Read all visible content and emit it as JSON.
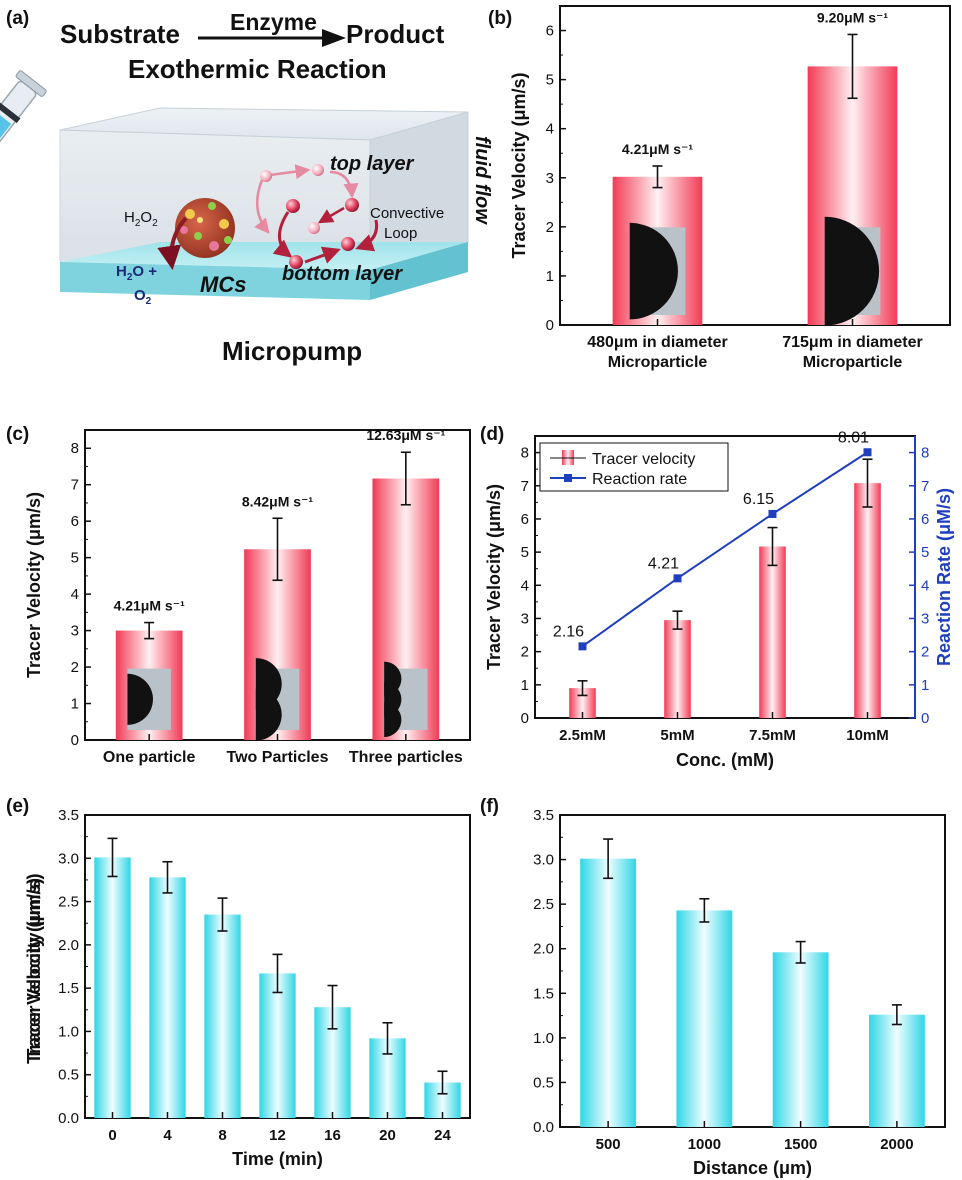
{
  "panel_a": {
    "letter": "(a)",
    "substrate": "Substrate",
    "enzyme": "Enzyme",
    "product": "Product",
    "reaction": "Exothermic Reaction",
    "top_layer": "top layer",
    "bottom_layer": "bottom layer",
    "fluid_flow": "fluid flow",
    "convective": "Convective",
    "loop": "Loop",
    "h2o2_main": "H",
    "h2o2_sub1": "2",
    "h2o2_o": "O",
    "h2o2_sub2": "2",
    "h2o": "H",
    "h2o_sub": "2",
    "h2o_rest": "O +",
    "o2": "O",
    "o2_sub": "2",
    "mcs": "MCs",
    "title": "Micropump"
  },
  "colors": {
    "red_bar_edge": "#f23a55",
    "cyan_bar_edge": "#2fd6e6",
    "rate_line": "#1f3fbf"
  },
  "chart_data": [
    {
      "id": "b",
      "letter": "(b)",
      "type": "bar",
      "categories": [
        [
          "480μm in diameter",
          "Microparticle"
        ],
        [
          "715μm in diameter",
          "Microparticle"
        ]
      ],
      "values": [
        3.02,
        5.27
      ],
      "errors": [
        0.22,
        0.65
      ],
      "annotations": [
        "4.21μM s⁻¹",
        "9.20μM s⁻¹"
      ],
      "ylabel": "Tracer Velocity  (μm/s)",
      "xlabel": "",
      "ylim": [
        0,
        6.5
      ],
      "yticks": [
        "0",
        "1",
        "2",
        "3",
        "4",
        "5",
        "6"
      ],
      "color": "red",
      "insets": true
    },
    {
      "id": "c",
      "letter": "(c)",
      "type": "bar",
      "categories": [
        [
          "One particle"
        ],
        [
          "Two Particles"
        ],
        [
          "Three particles"
        ]
      ],
      "values": [
        3.0,
        5.23,
        7.17
      ],
      "errors": [
        0.22,
        0.85,
        0.72
      ],
      "annotations": [
        "4.21μM s⁻¹",
        "8.42μM s⁻¹",
        "12.63μM s⁻¹"
      ],
      "ylabel": "Tracer Velocity  (μm/s)",
      "xlabel": "",
      "ylim": [
        0,
        8.5
      ],
      "yticks": [
        "0",
        "1",
        "2",
        "3",
        "4",
        "5",
        "6",
        "7",
        "8"
      ],
      "color": "red",
      "insets": true
    },
    {
      "id": "d",
      "letter": "(d)",
      "type": "bar",
      "categories": [
        [
          "2.5mM"
        ],
        [
          "5mM"
        ],
        [
          "7.5mM"
        ],
        [
          "10mM"
        ]
      ],
      "values": [
        0.9,
        2.95,
        5.17,
        7.08
      ],
      "errors": [
        0.22,
        0.27,
        0.57,
        0.72
      ],
      "series": [
        {
          "name": "Tracer velocity",
          "values": [
            0.9,
            2.95,
            5.17,
            7.08
          ]
        },
        {
          "name": "Reaction rate",
          "values": [
            2.16,
            4.21,
            6.15,
            8.01
          ]
        }
      ],
      "line_labels": [
        "2.16",
        "4.21",
        "6.15",
        "8.01"
      ],
      "ylabel": "Tracer Velocity  (μm/s)",
      "y2label": "Reaction Rate (μM/s)",
      "xlabel": "Conc. (mM)",
      "ylim": [
        0,
        8.5
      ],
      "yticks": [
        "0",
        "1",
        "2",
        "3",
        "4",
        "5",
        "6",
        "7",
        "8"
      ],
      "y2ticks": [
        "0",
        "1",
        "2",
        "3",
        "4",
        "5",
        "6",
        "7",
        "8"
      ],
      "legend": "top-left",
      "color": "red",
      "insets": false
    },
    {
      "id": "e",
      "letter": "(e)",
      "type": "bar",
      "categories": [
        [
          "0"
        ],
        [
          "4"
        ],
        [
          "8"
        ],
        [
          "12"
        ],
        [
          "16"
        ],
        [
          "20"
        ],
        [
          "24"
        ]
      ],
      "values": [
        3.01,
        2.78,
        2.35,
        1.67,
        1.28,
        0.92,
        0.41
      ],
      "errors": [
        0.22,
        0.18,
        0.19,
        0.22,
        0.25,
        0.18,
        0.13
      ],
      "ylabel": "Tracer Velocity  (μm/s)",
      "xlabel": "Time (min)",
      "ylim": [
        0,
        3.5
      ],
      "yticks": [
        "0.0",
        "0.5",
        "1.0",
        "1.5",
        "2.0",
        "2.5",
        "3.0",
        "3.5"
      ],
      "color": "cyan",
      "insets": false
    },
    {
      "id": "f",
      "letter": "(f)",
      "type": "bar",
      "categories": [
        [
          "500"
        ],
        [
          "1000"
        ],
        [
          "1500"
        ],
        [
          "2000"
        ]
      ],
      "values": [
        3.01,
        2.43,
        1.96,
        1.26
      ],
      "errors": [
        0.22,
        0.13,
        0.12,
        0.11
      ],
      "ylabel": "Tracer Velocity  (μm/s)",
      "xlabel": "Distance (μm)",
      "ylim": [
        0,
        3.5
      ],
      "yticks": [
        "0.0",
        "0.5",
        "1.0",
        "1.5",
        "2.0",
        "2.5",
        "3.0",
        "3.5"
      ],
      "color": "cyan",
      "insets": false
    }
  ]
}
